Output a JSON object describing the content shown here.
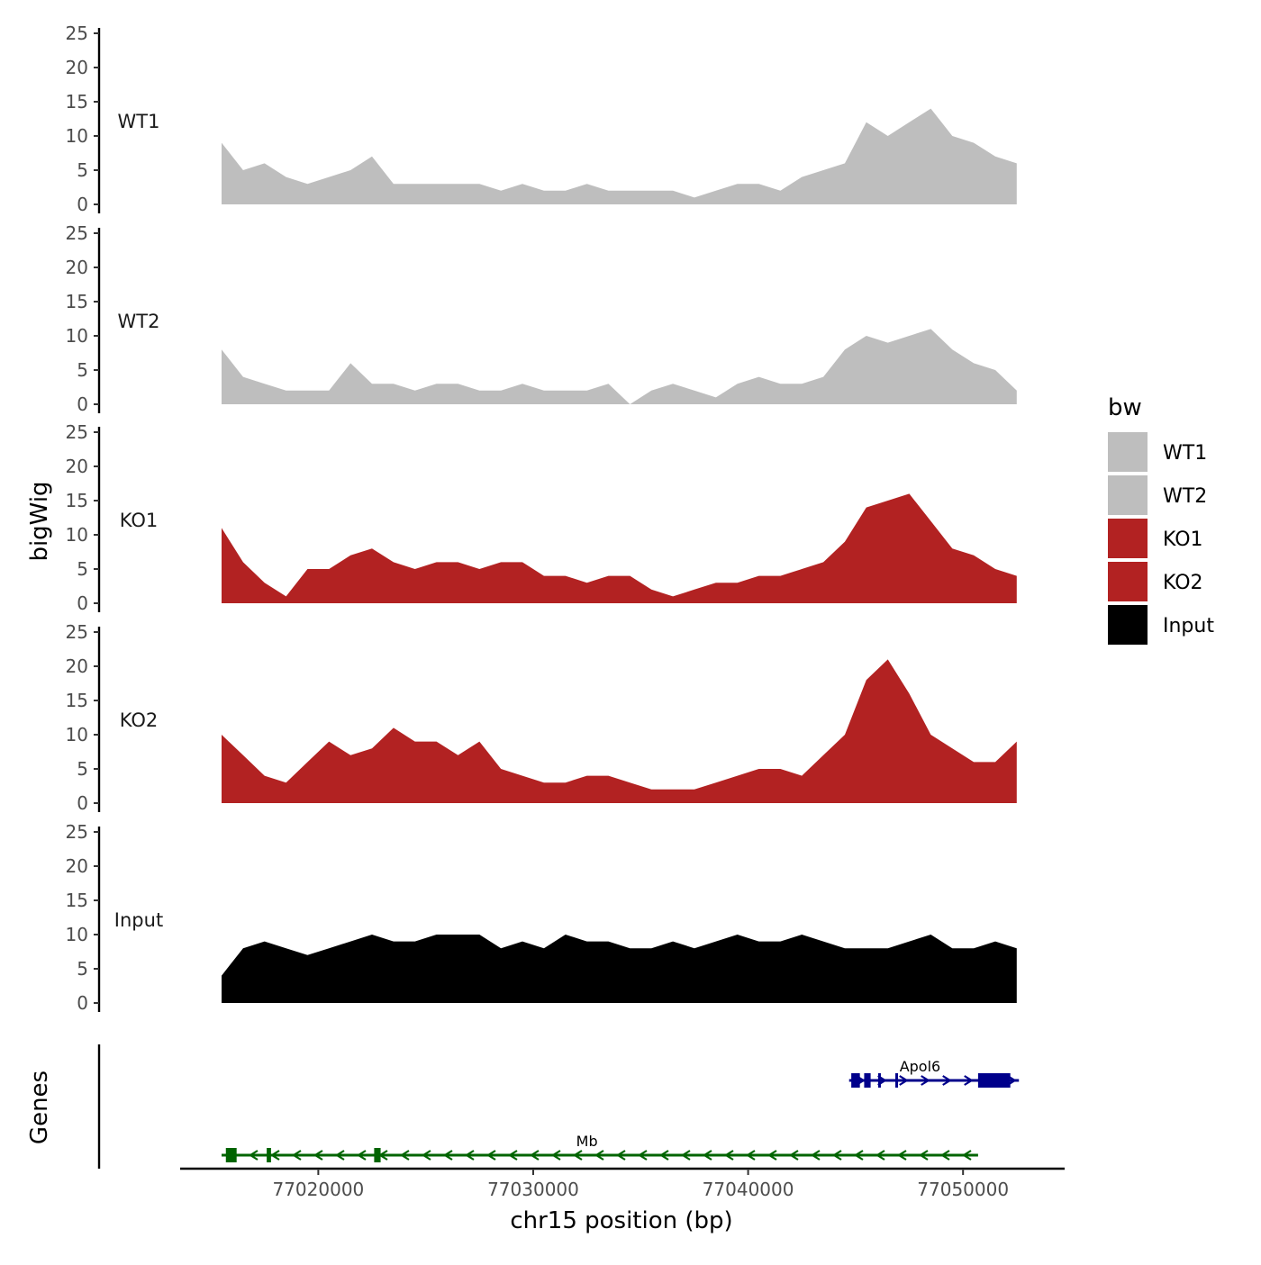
{
  "chart_data": {
    "type": "area",
    "title": "",
    "ylabel": "bigWig",
    "xlabel": "chr15 position (bp)",
    "genes_label": "Genes",
    "x_range": [
      77015500,
      77052800
    ],
    "x_ticks": [
      77020000,
      77030000,
      77040000,
      77050000
    ],
    "y_ticks": [
      0,
      5,
      10,
      15,
      20,
      25
    ],
    "ylim": [
      0,
      25
    ],
    "legend": {
      "title": "bw",
      "placement": "right",
      "entries": [
        {
          "label": "WT1",
          "color": "#bebebe"
        },
        {
          "label": "WT2",
          "color": "#bebebe"
        },
        {
          "label": "KO1",
          "color": "#b22222"
        },
        {
          "label": "KO2",
          "color": "#b22222"
        },
        {
          "label": "Input",
          "color": "#000000"
        }
      ]
    },
    "x": [
      77015500,
      77016500,
      77017500,
      77018500,
      77019500,
      77020500,
      77021500,
      77022500,
      77023500,
      77024500,
      77025500,
      77026500,
      77027500,
      77028500,
      77029500,
      77030500,
      77031500,
      77032500,
      77033500,
      77034500,
      77035500,
      77036500,
      77037500,
      77038500,
      77039500,
      77040500,
      77041500,
      77042500,
      77043500,
      77044500,
      77045500,
      77046500,
      77047500,
      77048500,
      77049500,
      77050500,
      77051500,
      77052500
    ],
    "series": [
      {
        "name": "WT1",
        "color": "#bebebe",
        "values": [
          9,
          5,
          6,
          4,
          3,
          4,
          5,
          7,
          3,
          3,
          3,
          3,
          3,
          2,
          3,
          2,
          2,
          3,
          2,
          2,
          2,
          2,
          1,
          2,
          3,
          3,
          2,
          4,
          5,
          6,
          12,
          10,
          12,
          14,
          10,
          9,
          7,
          6
        ]
      },
      {
        "name": "WT2",
        "color": "#bebebe",
        "values": [
          8,
          4,
          3,
          2,
          2,
          2,
          6,
          3,
          3,
          2,
          3,
          3,
          2,
          2,
          3,
          2,
          2,
          2,
          3,
          0,
          2,
          3,
          2,
          1,
          3,
          4,
          3,
          3,
          4,
          8,
          10,
          9,
          10,
          11,
          8,
          6,
          5,
          2
        ]
      },
      {
        "name": "KO1",
        "color": "#b22222",
        "values": [
          11,
          6,
          3,
          1,
          5,
          5,
          7,
          8,
          6,
          5,
          6,
          6,
          5,
          6,
          6,
          4,
          4,
          3,
          4,
          4,
          2,
          1,
          2,
          3,
          3,
          4,
          4,
          5,
          6,
          9,
          14,
          15,
          16,
          12,
          8,
          7,
          5,
          4
        ]
      },
      {
        "name": "KO2",
        "color": "#b22222",
        "values": [
          10,
          7,
          4,
          3,
          6,
          9,
          7,
          8,
          11,
          9,
          9,
          7,
          9,
          5,
          4,
          3,
          3,
          4,
          4,
          3,
          2,
          2,
          2,
          3,
          4,
          5,
          5,
          4,
          7,
          10,
          18,
          21,
          16,
          10,
          8,
          6,
          6,
          9
        ]
      },
      {
        "name": "Input",
        "color": "#000000",
        "values": [
          4,
          8,
          9,
          8,
          7,
          8,
          9,
          10,
          9,
          9,
          10,
          10,
          10,
          8,
          9,
          8,
          10,
          9,
          9,
          8,
          8,
          9,
          8,
          9,
          10,
          9,
          9,
          10,
          9,
          8,
          8,
          8,
          9,
          10,
          8,
          8,
          9,
          8
        ]
      }
    ],
    "genes": [
      {
        "name": "Apol6",
        "strand": "+",
        "color": "#00008b",
        "start": 77044700,
        "end": 77052600,
        "exons": [
          [
            77044800,
            77045200
          ],
          [
            77045400,
            77045700
          ],
          [
            77046050,
            77046150
          ],
          [
            77046850,
            77046950
          ],
          [
            77050700,
            77052200
          ]
        ]
      },
      {
        "name": "Mb",
        "strand": "-",
        "color": "#006400",
        "start": 77015500,
        "end": 77050700,
        "exons": [
          [
            77015700,
            77016200
          ],
          [
            77017600,
            77017800
          ],
          [
            77022600,
            77022900
          ]
        ]
      }
    ]
  }
}
